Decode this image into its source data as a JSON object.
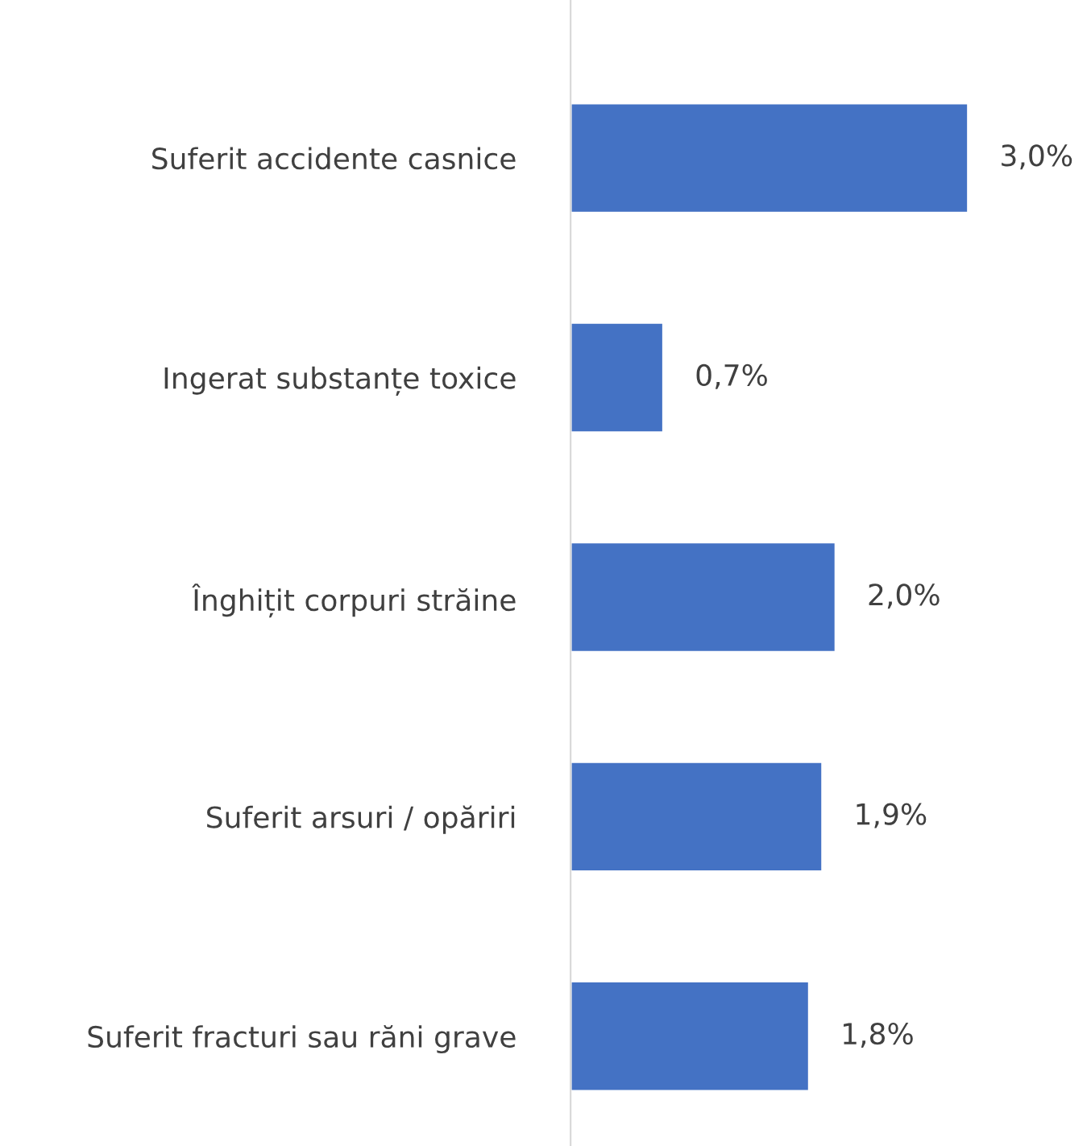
{
  "chart_data": {
    "type": "bar",
    "orientation": "horizontal",
    "categories": [
      "Suferit accidente casnice",
      "Ingerat substanțe toxice",
      "Înghițit corpuri străine",
      "Suferit arsuri / opăriri",
      "Suferit fracturi sau răni grave"
    ],
    "values": [
      3.0,
      0.7,
      2.0,
      1.9,
      1.8
    ],
    "value_labels": [
      "3,0%",
      "0,7%",
      "2,0%",
      "1,9%",
      "1,8%"
    ],
    "color": "#4472c4",
    "tick_labels": "y",
    "grid": false,
    "legend": false
  }
}
